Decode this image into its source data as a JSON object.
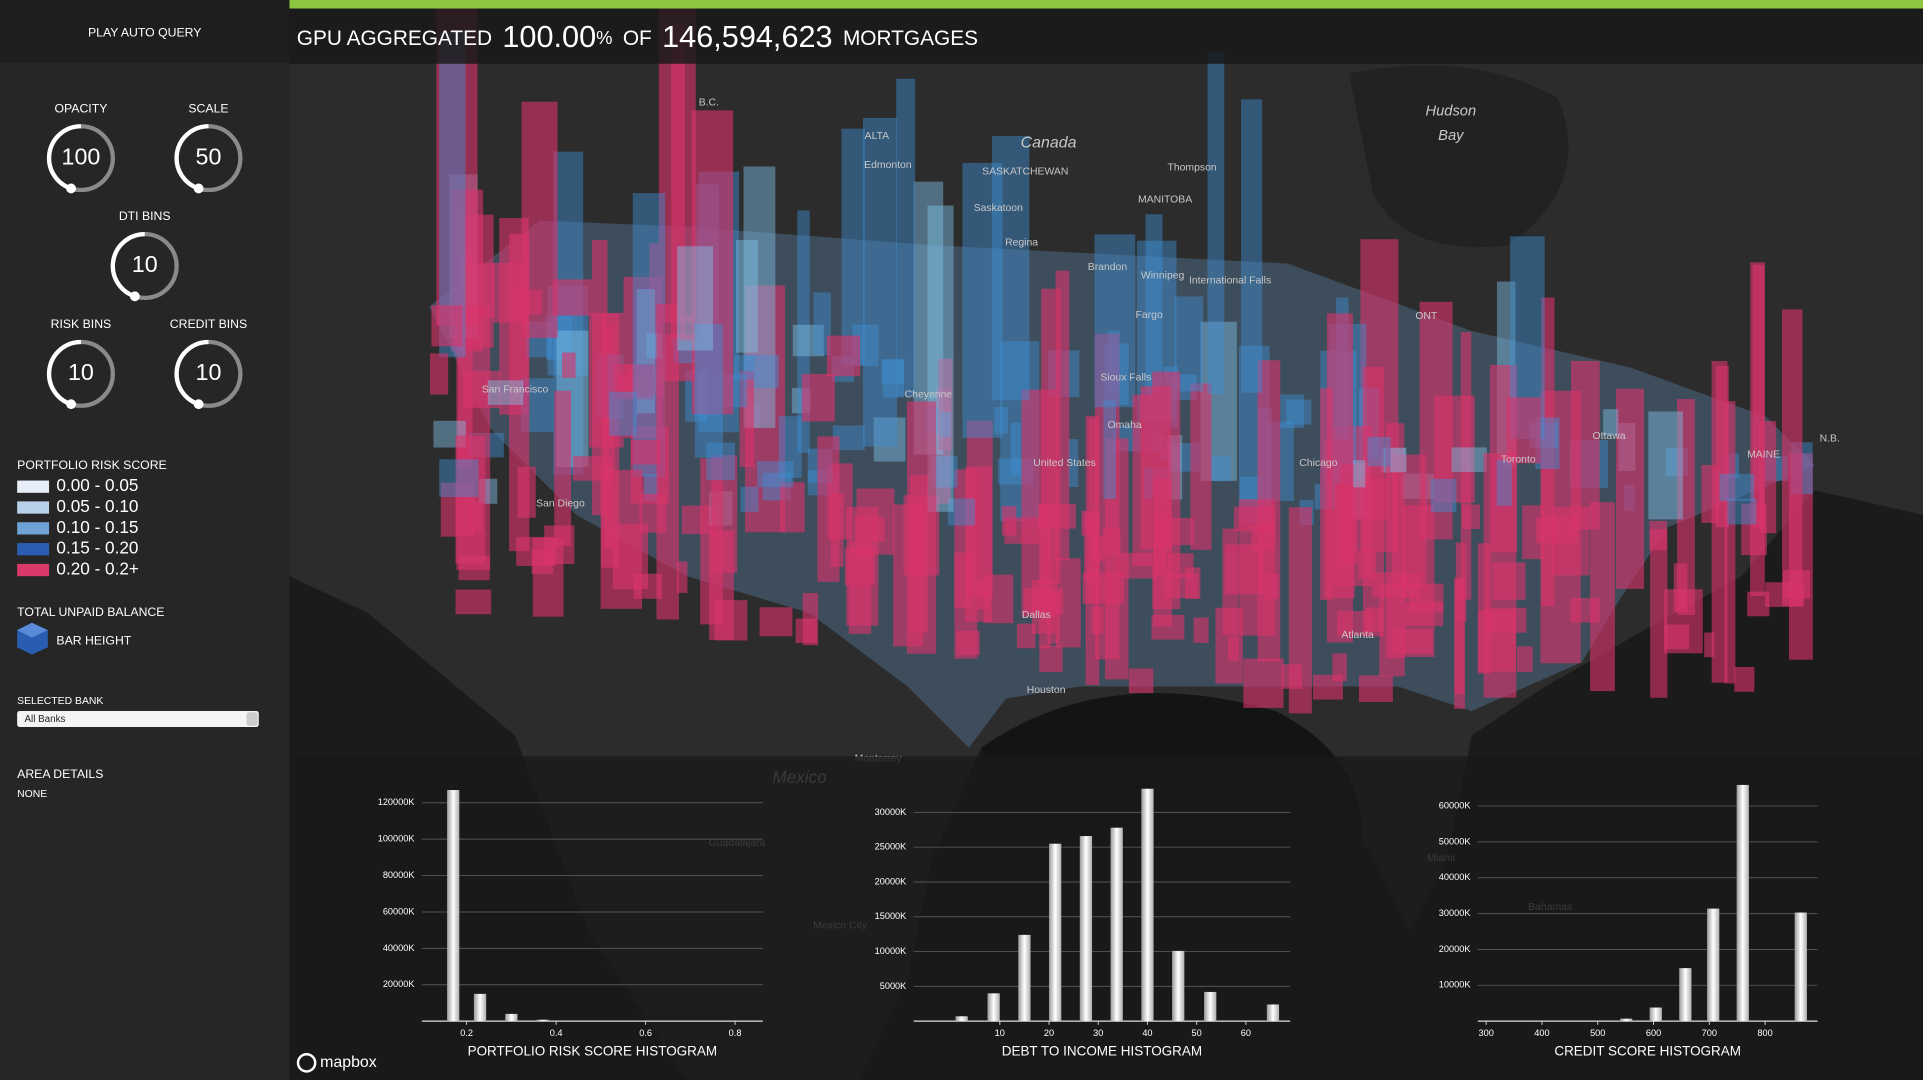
{
  "header": {
    "prefix": "GPU AGGREGATED",
    "percent": "100.00",
    "percent_unit": "%",
    "of": "OF",
    "count": "146,594,623",
    "suffix": "MORTGAGES"
  },
  "sidebar": {
    "play_button": "PLAY AUTO QUERY",
    "knobs": [
      {
        "label": "OPACITY",
        "value": 100
      },
      {
        "label": "SCALE",
        "value": 50
      },
      {
        "label": "DTI BINS",
        "value": 10
      },
      {
        "label": "RISK BINS",
        "value": 10
      },
      {
        "label": "CREDIT BINS",
        "value": 10
      }
    ],
    "legend": {
      "title": "PORTFOLIO RISK SCORE",
      "items": [
        {
          "label": "0.00 - 0.05",
          "color": "#e8eef8"
        },
        {
          "label": "0.05 - 0.10",
          "color": "#b9d0ea"
        },
        {
          "label": "0.10 - 0.15",
          "color": "#6fa2d6"
        },
        {
          "label": "0.15 - 0.20",
          "color": "#2b5eb2"
        },
        {
          "label": "0.20 - 0.2+",
          "color": "#d93a6a"
        }
      ]
    },
    "bar_height": {
      "title": "TOTAL UNPAID BALANCE",
      "label": "BAR HEIGHT"
    },
    "selected_bank": {
      "label": "SELECTED BANK",
      "value": "All Banks"
    },
    "area_details": {
      "title": "AREA DETAILS",
      "value": "NONE"
    }
  },
  "map": {
    "attribution": "mapbox",
    "labels": [
      "B.C.",
      "ALTA",
      "Edmonton",
      "Canada",
      "SASKATCHEWAN",
      "Thompson",
      "MANITOBA",
      "Saskatoon",
      "Regina",
      "Brandon",
      "Winnipeg",
      "International Falls",
      "ONT",
      "Fargo",
      "Sioux Falls",
      "Cheyenne",
      "Omaha",
      "United States",
      "Chicago",
      "Toronto",
      "Ottawa",
      "MAINE",
      "N.B.",
      "San Francisco",
      "San Diego",
      "Dallas",
      "Houston",
      "Atlanta",
      "Monterrey",
      "Mexico",
      "Guadalajara",
      "Mexico City",
      "Bahamas",
      "Miami",
      "Hudson",
      "Bay"
    ]
  },
  "chart_data": [
    {
      "type": "bar",
      "title": "PORTFOLIO RISK SCORE HISTOGRAM",
      "color": "#ffffff",
      "x": [
        0.17,
        0.23,
        0.3,
        0.37
      ],
      "values": [
        127000,
        15000,
        4000,
        800
      ],
      "xlim": [
        0.1,
        0.862
      ],
      "xticks": [
        0.2,
        0.4,
        0.6,
        0.8
      ],
      "ylim": [
        0,
        130000
      ],
      "yticks": [
        {
          "value": 20000,
          "label": "20000K"
        },
        {
          "value": 40000,
          "label": "40000K"
        },
        {
          "value": 60000,
          "label": "60000K"
        },
        {
          "value": 80000,
          "label": "80000K"
        },
        {
          "value": 100000,
          "label": "100000K"
        },
        {
          "value": 120000,
          "label": "120000K"
        }
      ],
      "grid": true
    },
    {
      "type": "bar",
      "title": "DEBT TO INCOME HISTOGRAM",
      "color": "#ffffff",
      "x": [
        2.25,
        8.75,
        15,
        21.25,
        27.5,
        33.75,
        40,
        46.25,
        52.75,
        65.5
      ],
      "values": [
        700,
        4000,
        12400,
        25500,
        26600,
        27800,
        33400,
        10100,
        4200,
        2400
      ],
      "xlim": [
        -7.5,
        69
      ],
      "xticks": [
        10,
        20,
        30,
        40,
        50,
        60
      ],
      "ylim": [
        0,
        34000
      ],
      "yticks": [
        {
          "value": 5000,
          "label": "5000K"
        },
        {
          "value": 10000,
          "label": "10000K"
        },
        {
          "value": 15000,
          "label": "15000K"
        },
        {
          "value": 20000,
          "label": "20000K"
        },
        {
          "value": 25000,
          "label": "25000K"
        },
        {
          "value": 30000,
          "label": "30000K"
        }
      ],
      "grid": true
    },
    {
      "type": "bar",
      "title": "CREDIT SCORE HISTOGRAM",
      "color": "#ffffff",
      "x": [
        551,
        604,
        657,
        707,
        760,
        864
      ],
      "values": [
        700,
        3800,
        14800,
        31400,
        65900,
        30300
      ],
      "xlim": [
        285,
        894
      ],
      "xticks": [
        300,
        400,
        500,
        600,
        700,
        800
      ],
      "ylim": [
        0,
        66000
      ],
      "yticks": [
        {
          "value": 10000,
          "label": "10000K"
        },
        {
          "value": 20000,
          "label": "20000K"
        },
        {
          "value": 30000,
          "label": "30000K"
        },
        {
          "value": 40000,
          "label": "40000K"
        },
        {
          "value": 50000,
          "label": "50000K"
        },
        {
          "value": 60000,
          "label": "60000K"
        }
      ],
      "grid": true
    }
  ]
}
